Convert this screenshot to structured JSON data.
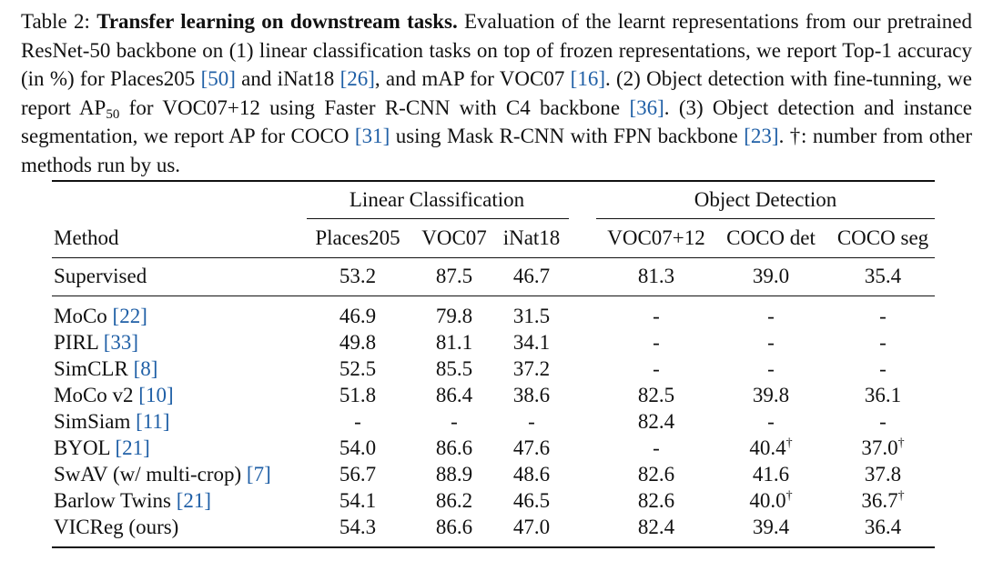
{
  "caption": {
    "prefix": "Table 2: ",
    "title": "Transfer learning on downstream tasks.",
    "seg1": " Evaluation of the learnt representations from our pretrained ResNet-50 backbone on (1) linear classification tasks on top of frozen representations, we report Top-1 accuracy (in %) for Places205 ",
    "cite_places": "[50]",
    "seg2": " and iNat18 ",
    "cite_inat": "[26]",
    "seg3": ", and mAP for VOC07 ",
    "cite_voc": "[16]",
    "seg4": ". (2) Object detection with fine-tunning, we report AP",
    "ap_sub": "50",
    "seg5": " for VOC07+12 using Faster R-CNN with C4 backbone ",
    "cite_faster": "[36]",
    "seg6": ". (3) Object detection and instance segmentation, we report AP for COCO ",
    "cite_coco": "[31]",
    "seg7": " using Mask R-CNN with FPN backbone ",
    "cite_fpn": "[23]",
    "seg8": ". †: number from other methods run by us."
  },
  "table": {
    "group_linear": "Linear Classification",
    "group_detection": "Object Detection",
    "headers": [
      "Method",
      "Places205",
      "VOC07",
      "iNat18",
      "VOC07+12",
      "COCO det",
      "COCO seg"
    ],
    "rows": [
      {
        "method": "Supervised",
        "cite": "",
        "values": [
          "53.2",
          "87.5",
          "46.7",
          "81.3",
          "39.0",
          "35.4"
        ]
      },
      {
        "method": "MoCo ",
        "cite": "[22]",
        "values": [
          "46.9",
          "79.8",
          "31.5",
          "-",
          "-",
          "-"
        ]
      },
      {
        "method": "PIRL ",
        "cite": "[33]",
        "values": [
          "49.8",
          "81.1",
          "34.1",
          "-",
          "-",
          "-"
        ]
      },
      {
        "method": "SimCLR ",
        "cite": "[8]",
        "values": [
          "52.5",
          "85.5",
          "37.2",
          "-",
          "-",
          "-"
        ]
      },
      {
        "method": "MoCo v2 ",
        "cite": "[10]",
        "values": [
          "51.8",
          "86.4",
          "38.6",
          "82.5",
          "39.8",
          "36.1"
        ]
      },
      {
        "method": "SimSiam ",
        "cite": "[11]",
        "values": [
          "-",
          "-",
          "-",
          "82.4",
          "-",
          "-"
        ]
      },
      {
        "method": "BYOL ",
        "cite": "[21]",
        "values": [
          "54.0",
          "86.6",
          "47.6",
          "-",
          "40.4",
          "37.0"
        ],
        "dagger": [
          false,
          false,
          false,
          false,
          true,
          true
        ]
      },
      {
        "method": "SwAV (w/ multi-crop) ",
        "cite": "[7]",
        "values": [
          "56.7",
          "88.9",
          "48.6",
          "82.6",
          "41.6",
          "37.8"
        ]
      },
      {
        "method": "Barlow Twins ",
        "cite": "[21]",
        "values": [
          "54.1",
          "86.2",
          "46.5",
          "82.6",
          "40.0",
          "36.7"
        ],
        "dagger": [
          false,
          false,
          false,
          false,
          true,
          true
        ]
      },
      {
        "method": "VICReg (ours)",
        "cite": "",
        "values": [
          "54.3",
          "86.6",
          "47.0",
          "82.4",
          "39.4",
          "36.4"
        ]
      }
    ],
    "dagger_symbol": "†",
    "cite_color": "#1f5fa6"
  }
}
